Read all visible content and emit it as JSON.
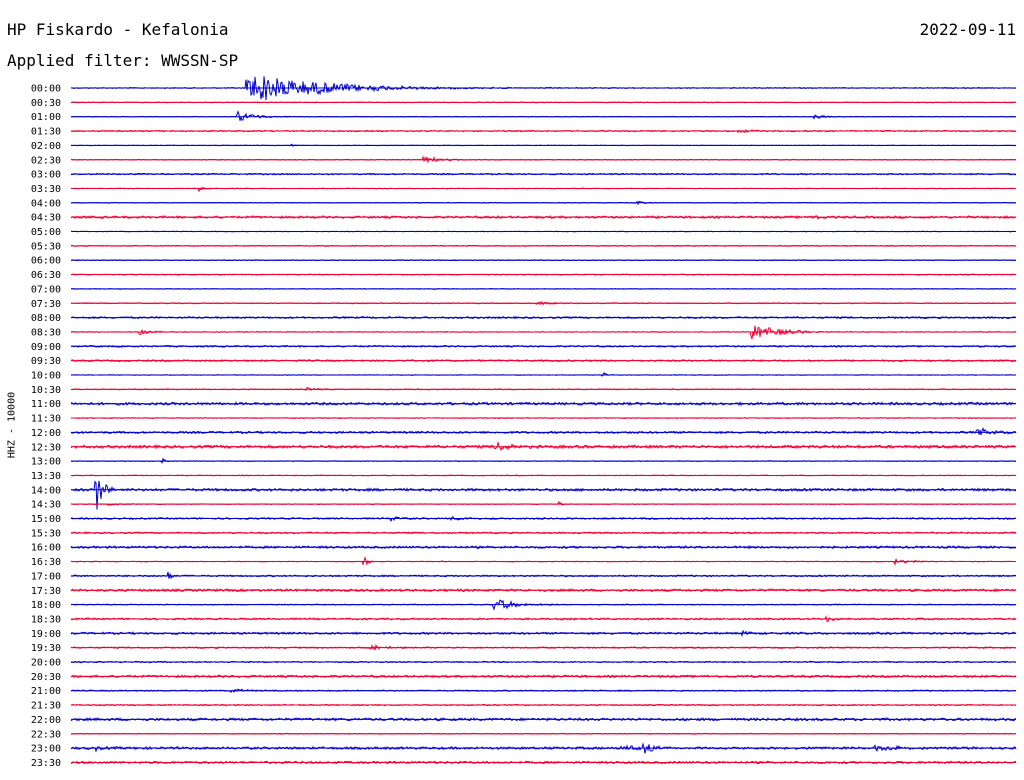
{
  "header": {
    "station": "HP Fiskardo - Kefalonia",
    "date": "2022-09-11",
    "filter": "Applied filter: WWSSN-SP",
    "channel": "HHZ - 10000"
  },
  "colors": {
    "even_trace": "#0000cc",
    "odd_trace": "#ee0033"
  },
  "chart_data": {
    "type": "line",
    "title": "HP Fiskardo - Kefalonia",
    "ylabel": "HHZ - 10000",
    "trace_minutes": 30,
    "rows": [
      "00:00",
      "00:30",
      "01:00",
      "01:30",
      "02:00",
      "02:30",
      "03:00",
      "03:30",
      "04:00",
      "04:30",
      "05:00",
      "05:30",
      "06:00",
      "06:30",
      "07:00",
      "07:30",
      "08:00",
      "08:30",
      "09:00",
      "09:30",
      "10:00",
      "10:30",
      "11:00",
      "11:30",
      "12:00",
      "12:30",
      "13:00",
      "13:30",
      "14:00",
      "14:30",
      "15:00",
      "15:30",
      "16:00",
      "16:30",
      "17:00",
      "17:30",
      "18:00",
      "18:30",
      "19:00",
      "19:30",
      "20:00",
      "20:30",
      "21:00",
      "21:30",
      "22:00",
      "22:30",
      "23:00",
      "23:30"
    ],
    "noise_levels": [
      0.6,
      0.5,
      0.4,
      0.8,
      0.3,
      0.5,
      0.9,
      0.4,
      0.4,
      1.4,
      0.4,
      0.6,
      0.5,
      0.6,
      0.4,
      0.6,
      1.1,
      0.5,
      1.0,
      1.1,
      0.4,
      0.6,
      1.6,
      0.5,
      1.3,
      1.8,
      0.4,
      0.5,
      1.6,
      0.4,
      1.0,
      1.0,
      1.4,
      0.4,
      1.0,
      1.5,
      0.6,
      1.1,
      1.3,
      0.9,
      0.8,
      1.4,
      0.8,
      0.8,
      1.6,
      0.5,
      1.5,
      1.4
    ],
    "events": [
      {
        "row": 0,
        "minute": 5.6,
        "amplitude": 16,
        "decay_minutes": 2.2
      },
      {
        "row": 2,
        "minute": 5.3,
        "amplitude": 5,
        "decay_minutes": 0.6
      },
      {
        "row": 2,
        "minute": 23.6,
        "amplitude": 2,
        "decay_minutes": 0.4
      },
      {
        "row": 3,
        "minute": 21.2,
        "amplitude": 1.5,
        "decay_minutes": 0.5
      },
      {
        "row": 4,
        "minute": 7.0,
        "amplitude": 2,
        "decay_minutes": 0.1
      },
      {
        "row": 5,
        "minute": 11.2,
        "amplitude": 4,
        "decay_minutes": 0.5
      },
      {
        "row": 7,
        "minute": 4.1,
        "amplitude": 3,
        "decay_minutes": 0.15
      },
      {
        "row": 8,
        "minute": 18.0,
        "amplitude": 1.5,
        "decay_minutes": 0.3
      },
      {
        "row": 9,
        "minute": 23.6,
        "amplitude": 3,
        "decay_minutes": 0.2
      },
      {
        "row": 15,
        "minute": 14.8,
        "amplitude": 2,
        "decay_minutes": 0.4
      },
      {
        "row": 17,
        "minute": 2.2,
        "amplitude": 3,
        "decay_minutes": 0.4
      },
      {
        "row": 17,
        "minute": 21.6,
        "amplitude": 9,
        "decay_minutes": 0.8
      },
      {
        "row": 20,
        "minute": 16.9,
        "amplitude": 4,
        "decay_minutes": 0.1
      },
      {
        "row": 21,
        "minute": 7.5,
        "amplitude": 1.5,
        "decay_minutes": 0.4
      },
      {
        "row": 24,
        "minute": 28.8,
        "amplitude": 4,
        "decay_minutes": 0.6
      },
      {
        "row": 25,
        "minute": 13.5,
        "amplitude": 5,
        "decay_minutes": 0.4
      },
      {
        "row": 26,
        "minute": 2.9,
        "amplitude": 3,
        "decay_minutes": 0.1
      },
      {
        "row": 28,
        "minute": 0.8,
        "amplitude": 24,
        "decay_minutes": 0.2
      },
      {
        "row": 29,
        "minute": 1.2,
        "amplitude": 2,
        "decay_minutes": 0.3
      },
      {
        "row": 29,
        "minute": 15.5,
        "amplitude": 3,
        "decay_minutes": 0.1
      },
      {
        "row": 30,
        "minute": 10.2,
        "amplitude": 3,
        "decay_minutes": 0.2
      },
      {
        "row": 30,
        "minute": 12.1,
        "amplitude": 2,
        "decay_minutes": 0.3
      },
      {
        "row": 33,
        "minute": 9.3,
        "amplitude": 9,
        "decay_minutes": 0.1
      },
      {
        "row": 33,
        "minute": 11.8,
        "amplitude": 2,
        "decay_minutes": 0.1
      },
      {
        "row": 33,
        "minute": 26.2,
        "amplitude": 3,
        "decay_minutes": 0.5
      },
      {
        "row": 34,
        "minute": 3.1,
        "amplitude": 6,
        "decay_minutes": 0.1
      },
      {
        "row": 36,
        "minute": 13.4,
        "amplitude": 7,
        "decay_minutes": 0.7
      },
      {
        "row": 37,
        "minute": 24.0,
        "amplitude": 3,
        "decay_minutes": 0.3
      },
      {
        "row": 38,
        "minute": 21.3,
        "amplitude": 3,
        "decay_minutes": 0.3
      },
      {
        "row": 39,
        "minute": 9.5,
        "amplitude": 3,
        "decay_minutes": 0.4
      },
      {
        "row": 42,
        "minute": 5.1,
        "amplitude": 3,
        "decay_minutes": 0.3
      },
      {
        "row": 46,
        "minute": 0.8,
        "amplitude": 2,
        "decay_minutes": 0.3
      },
      {
        "row": 46,
        "minute": 17.5,
        "amplitude": 3,
        "decay_minutes": 0.4
      },
      {
        "row": 46,
        "minute": 18.2,
        "amplitude": 10,
        "decay_minutes": 0.2
      },
      {
        "row": 46,
        "minute": 25.5,
        "amplitude": 4,
        "decay_minutes": 0.5
      }
    ]
  }
}
